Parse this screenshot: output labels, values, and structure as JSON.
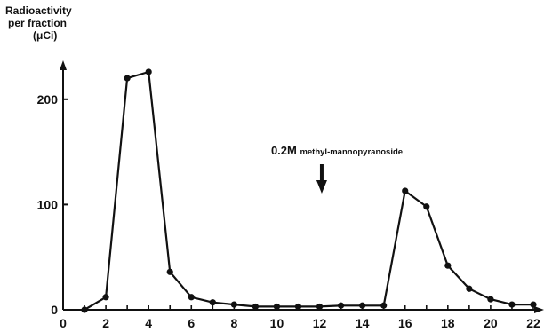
{
  "chart_data": {
    "type": "line",
    "ylabel_lines": [
      "Radioactivity",
      "per fraction",
      "(μCi)"
    ],
    "xlabel": "",
    "xlim": [
      0,
      22
    ],
    "ylim": [
      0,
      240
    ],
    "xticks": [
      0,
      2,
      4,
      6,
      8,
      10,
      12,
      14,
      16,
      18,
      20,
      22
    ],
    "yticks": [
      0,
      100,
      200
    ],
    "series": [
      {
        "x": [
          1,
          2,
          3,
          4,
          5,
          6,
          7,
          8,
          9,
          10,
          11,
          12,
          13,
          14,
          15,
          16,
          17,
          18,
          19,
          20,
          21,
          22
        ],
        "values": [
          0,
          12,
          220,
          226,
          36,
          12,
          7,
          5,
          3,
          3,
          3,
          3,
          4,
          4,
          4,
          113,
          98,
          42,
          20,
          10,
          5,
          5
        ]
      }
    ],
    "annotation": {
      "text_prefix": "0.2M",
      "text_suffix": "methyl-mannopyranoside",
      "x": 12.1,
      "arrow": "down"
    },
    "grid": false,
    "legend": "none"
  }
}
